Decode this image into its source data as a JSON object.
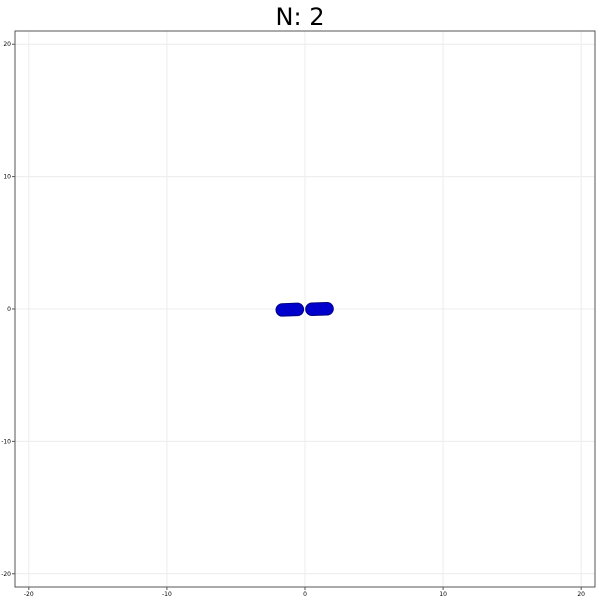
{
  "chart_data": {
    "type": "scatter",
    "title": "N: 2",
    "xlabel": "",
    "ylabel": "",
    "xlim": [
      -21,
      21
    ],
    "ylim": [
      -21,
      21
    ],
    "grid": true,
    "xticks": [
      -20,
      -10,
      0,
      10,
      20
    ],
    "yticks": [
      -20,
      -10,
      0,
      10,
      20
    ],
    "series": [
      {
        "shape": "capsule",
        "color": "#0000cc",
        "edge_color": "#000080",
        "points": [
          {
            "x": -1.1,
            "y": -0.05,
            "length": 2.0,
            "width": 0.9,
            "angle_deg": 2
          },
          {
            "x": 1.05,
            "y": 0.0,
            "length": 2.0,
            "width": 0.9,
            "angle_deg": 2
          }
        ]
      }
    ]
  }
}
